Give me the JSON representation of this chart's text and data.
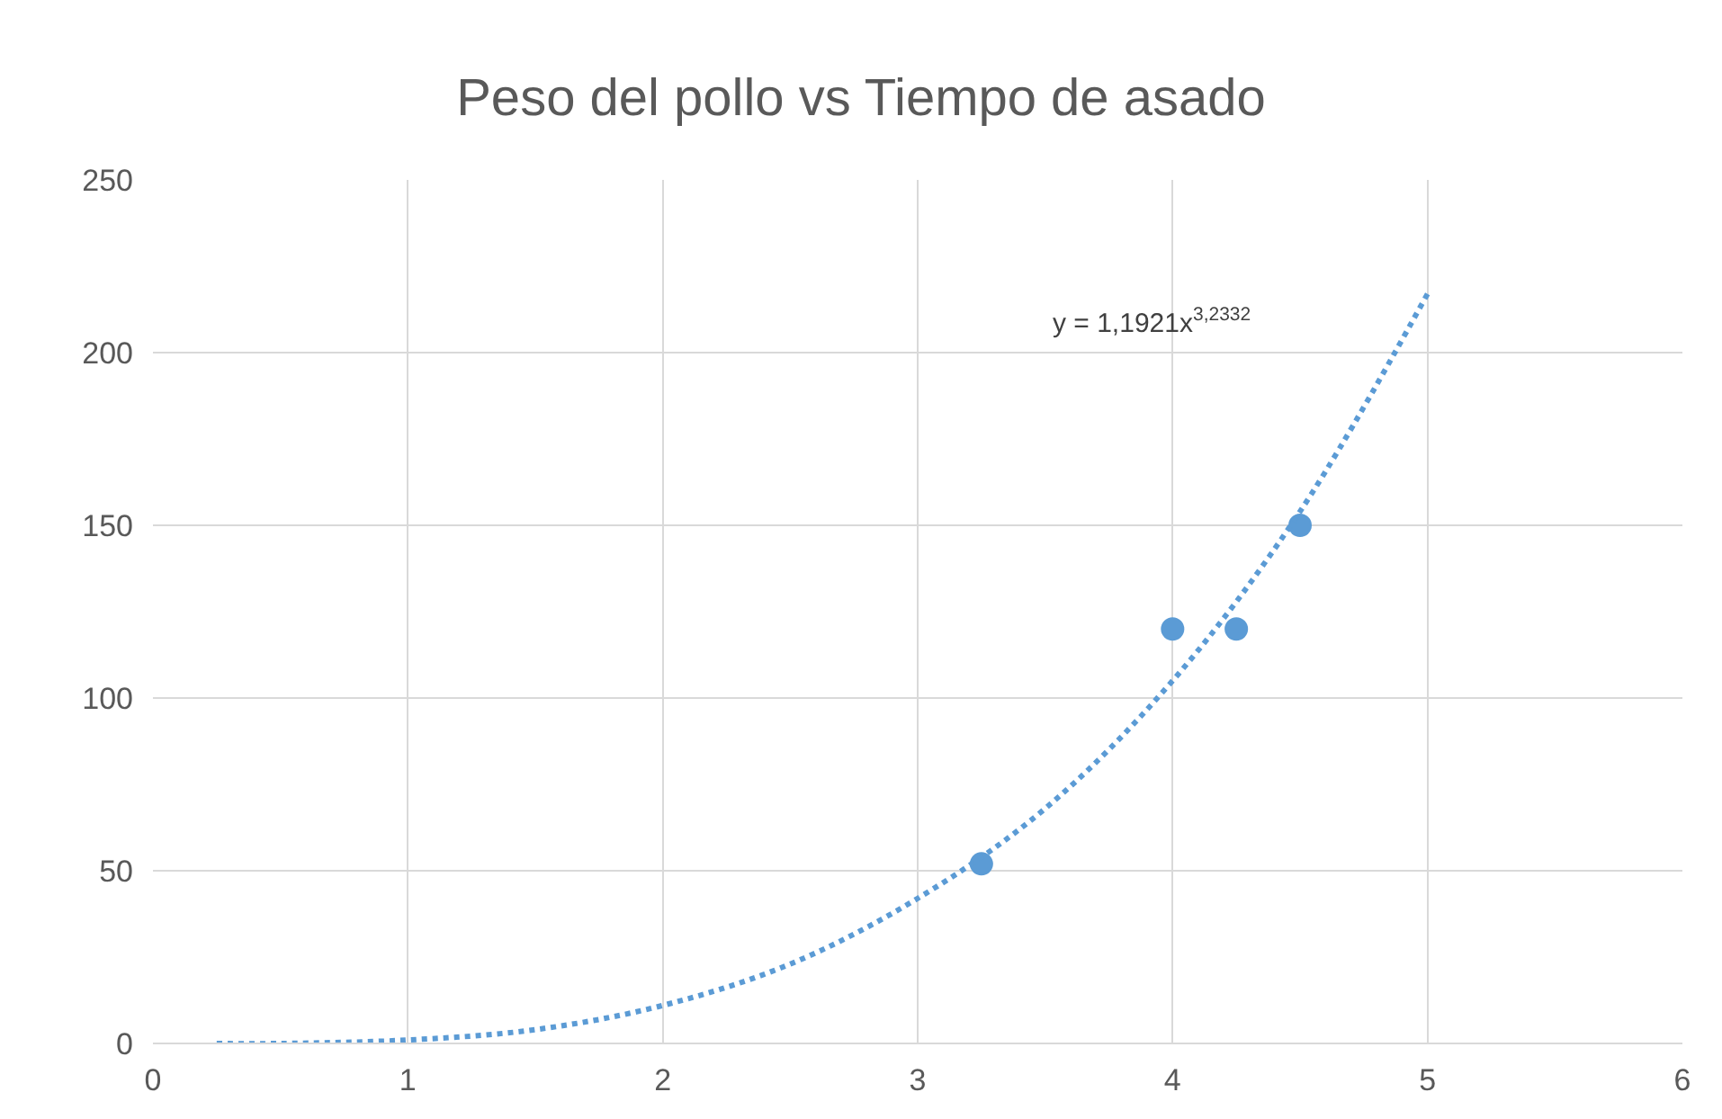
{
  "chart_data": {
    "type": "scatter",
    "title": "Peso del pollo vs Tiempo de asado",
    "series": [
      {
        "color": "#5b9bd5",
        "marker": "circle",
        "x": [
          3.25,
          4,
          4.25,
          4.5
        ],
        "values": [
          52,
          120,
          120,
          150
        ]
      },
      {
        "type": "line",
        "color": "#5b9bd5",
        "marker": "none",
        "line_style": "dotted",
        "x": [
          0.25,
          0.5,
          1,
          1.5,
          2,
          2.5,
          3,
          3.5,
          4,
          4.5,
          5
        ],
        "values": [
          0,
          0,
          1,
          4,
          11,
          23,
          42,
          68,
          105,
          154,
          217
        ]
      }
    ],
    "annotations": [
      "y = 1,1921x$^{3,2332}$"
    ],
    "xlim": [
      0,
      6
    ],
    "xticks": [
      0,
      1,
      2,
      3,
      4,
      5,
      6
    ],
    "ylim": [
      0,
      250
    ],
    "yticks": [
      0,
      50,
      100,
      150,
      200,
      250
    ],
    "grid": true
  }
}
